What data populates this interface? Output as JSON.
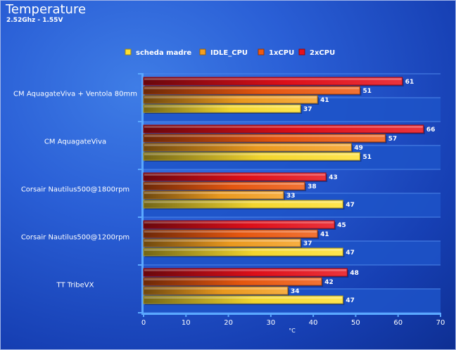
{
  "title": "Temperature",
  "subtitle": "2.52Ghz - 1.55V",
  "chart_data": {
    "type": "bar",
    "orientation": "horizontal",
    "categories": [
      "CM AquagateViva + Ventola 80mm",
      "CM AquagateViva",
      "Corsair Nautilus500@1800rpm",
      "Corsair Nautilus500@1200rpm",
      "TT TribeVX"
    ],
    "series": [
      {
        "name": "2xCPU",
        "color": "#e8101a",
        "values": [
          61,
          66,
          43,
          45,
          48
        ]
      },
      {
        "name": "1xCPU",
        "color": "#f05a10",
        "values": [
          51,
          57,
          38,
          41,
          42
        ]
      },
      {
        "name": "IDLE_CPU",
        "color": "#f5a020",
        "values": [
          41,
          49,
          33,
          37,
          34
        ]
      },
      {
        "name": "scheda madre",
        "color": "#ffe030",
        "values": [
          37,
          51,
          47,
          47,
          47
        ]
      }
    ],
    "legend": {
      "order": [
        "scheda madre",
        "IDLE_CPU",
        "1xCPU",
        "2xCPU"
      ],
      "position": "top"
    },
    "xlabel": "°C",
    "xlim": [
      0,
      70
    ],
    "xticks": [
      0,
      10,
      20,
      30,
      40,
      50,
      60,
      70
    ],
    "data_labels": true,
    "grid": true
  }
}
